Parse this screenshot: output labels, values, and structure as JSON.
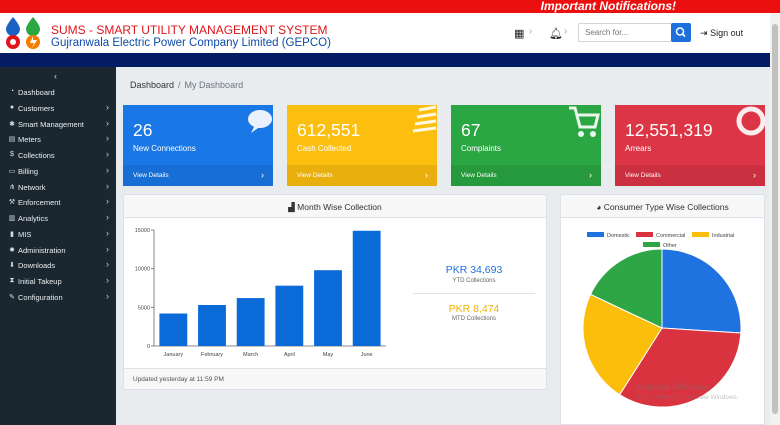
{
  "notification": "Important Notifications!",
  "header": {
    "title": "SUMS - SMART UTILITY MANAGEMENT SYSTEM",
    "company": "Gujranwala Electric Power Company Limited (GEPCO)",
    "search_placeholder": "Search for...",
    "signout": "Sign out"
  },
  "sidebar": {
    "items": [
      {
        "label": "Dashboard",
        "icon": "tachometer-icon",
        "glyph": "◔",
        "arrow": false
      },
      {
        "label": "Customers",
        "icon": "user-icon",
        "glyph": "●",
        "arrow": true
      },
      {
        "label": "Smart Management",
        "icon": "cog-icon",
        "glyph": "✱",
        "arrow": true
      },
      {
        "label": "Meters",
        "icon": "meter-icon",
        "glyph": "▤",
        "arrow": true
      },
      {
        "label": "Collections",
        "icon": "dollar-icon",
        "glyph": "$",
        "arrow": true
      },
      {
        "label": "Billing",
        "icon": "billing-icon",
        "glyph": "▭",
        "arrow": true
      },
      {
        "label": "Network",
        "icon": "network-icon",
        "glyph": "⋔",
        "arrow": true
      },
      {
        "label": "Enforcement",
        "icon": "gavel-icon",
        "glyph": "⚒",
        "arrow": true
      },
      {
        "label": "Analytics",
        "icon": "chart-icon",
        "glyph": "▥",
        "arrow": true
      },
      {
        "label": "MIS",
        "icon": "book-icon",
        "glyph": "▮",
        "arrow": true
      },
      {
        "label": "Administration",
        "icon": "gear-icon",
        "glyph": "✹",
        "arrow": true
      },
      {
        "label": "Downloads",
        "icon": "download-icon",
        "glyph": "⬇",
        "arrow": true
      },
      {
        "label": "Initial Takeup",
        "icon": "hourglass-icon",
        "glyph": "⧗",
        "arrow": true
      },
      {
        "label": "Configuration",
        "icon": "wrench-icon",
        "glyph": "✎",
        "arrow": true
      }
    ]
  },
  "breadcrumb": {
    "home": "Dashboard",
    "current": "My Dashboard"
  },
  "cards": [
    {
      "value": "26",
      "label": "New Connections",
      "link": "View Details",
      "color": "#1a78e6",
      "icon": "comments-icon"
    },
    {
      "value": "612,551",
      "label": "Cash Collected",
      "link": "View Details",
      "color": "#fdbf0f",
      "icon": "list-icon"
    },
    {
      "value": "67",
      "label": "Complaints",
      "link": "View Details",
      "color": "#2aa743",
      "icon": "shopping-cart-icon"
    },
    {
      "value": "12,551,319",
      "label": "Arrears",
      "link": "View Details",
      "color": "#dc3545",
      "icon": "life-ring-icon"
    }
  ],
  "monthly_panel": {
    "title": "Month Wise Collection",
    "footer": "Updated yesterday at 11:59 PM",
    "ytd_value": "PKR 34,693",
    "ytd_label": "YTD Collections",
    "mtd_value": "PKR 8,474",
    "mtd_label": "MTD Collections"
  },
  "pie_panel": {
    "title": "Consumer Type Wise Collections"
  },
  "chart_data": [
    {
      "type": "bar",
      "categories": [
        "January",
        "February",
        "March",
        "April",
        "May",
        "June"
      ],
      "values": [
        4200,
        5300,
        6200,
        7800,
        9800,
        14900
      ],
      "ylim": [
        0,
        15000
      ],
      "yticks": [
        0,
        5000,
        10000,
        15000
      ],
      "color": "#0a6ad8",
      "grid": false
    },
    {
      "type": "pie",
      "legend_position": "top",
      "labels": [
        "Domestic",
        "Commercial",
        "Industrial",
        "Other"
      ],
      "values": [
        26,
        33,
        23,
        18
      ],
      "colors": [
        "#1e73e0",
        "#d9333f",
        "#fbbf0b",
        "#2fa646"
      ]
    }
  ],
  "watermark": {
    "line1": "Activate Windows",
    "line2": "Go to Settings to activate Windows."
  }
}
